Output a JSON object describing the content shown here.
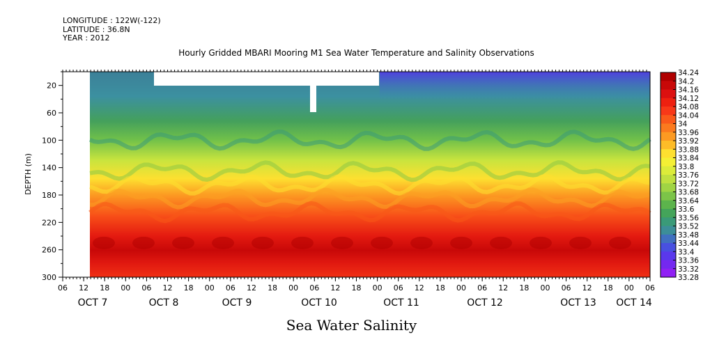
{
  "header": {
    "longitude": "LONGITUDE : 122W(-122)",
    "latitude": "LATITUDE : 36.8N",
    "year": "YEAR : 2012"
  },
  "footer_label": "Sea Water Salinity",
  "chart_data": {
    "type": "heatmap",
    "title": "Hourly Gridded MBARI Mooring M1 Sea Water Temperature and Salinity Observations",
    "ylabel": "DEPTH (m)",
    "xlabel": "",
    "variable": "Sea Water Salinity",
    "y_axis": {
      "range": [
        0,
        300
      ],
      "inverted": true,
      "tick_labels": [
        20,
        60,
        100,
        140,
        180,
        220,
        260,
        300
      ]
    },
    "x_axis": {
      "hour_tick_labels": [
        "06",
        "12",
        "18",
        "00",
        "06",
        "12",
        "18",
        "00",
        "06",
        "12",
        "18",
        "00",
        "06",
        "12",
        "18",
        "00",
        "06",
        "12",
        "18",
        "00",
        "06",
        "12",
        "18",
        "00",
        "06",
        "12",
        "18",
        "00",
        "06"
      ],
      "day_labels": [
        "OCT 7",
        "OCT 8",
        "OCT 9",
        "OCT 10",
        "OCT 11",
        "OCT 12",
        "OCT 13",
        "OCT 14"
      ]
    },
    "colorbar": {
      "levels": [
        34.24,
        34.2,
        34.16,
        34.12,
        34.08,
        34.04,
        34,
        33.96,
        33.92,
        33.88,
        33.84,
        33.8,
        33.76,
        33.72,
        33.68,
        33.64,
        33.6,
        33.56,
        33.52,
        33.48,
        33.44,
        33.4,
        33.36,
        33.32,
        33.28
      ],
      "colors": [
        "#b00000",
        "#c80808",
        "#dc1010",
        "#ee2010",
        "#f83818",
        "#fa5a1a",
        "#fb7a1e",
        "#fc9a22",
        "#fdbc28",
        "#fee030",
        "#f4f034",
        "#dcec3a",
        "#c0e040",
        "#a0d444",
        "#7cc448",
        "#5cb44c",
        "#44a45a",
        "#3a9a78",
        "#3c8e98",
        "#4070c0",
        "#4850e0",
        "#5a38ec",
        "#7428f0",
        "#9020f4"
      ],
      "position": "right"
    },
    "profile": [
      {
        "depth": 5,
        "salinity": 33.46
      },
      {
        "depth": 30,
        "salinity": 33.5
      },
      {
        "depth": 60,
        "salinity": 33.58
      },
      {
        "depth": 100,
        "salinity": 33.66
      },
      {
        "depth": 140,
        "salinity": 33.8
      },
      {
        "depth": 160,
        "salinity": 33.88
      },
      {
        "depth": 180,
        "salinity": 33.96
      },
      {
        "depth": 220,
        "salinity": 34.08
      },
      {
        "depth": 260,
        "salinity": 34.16
      },
      {
        "depth": 300,
        "salinity": 34.08
      }
    ]
  }
}
